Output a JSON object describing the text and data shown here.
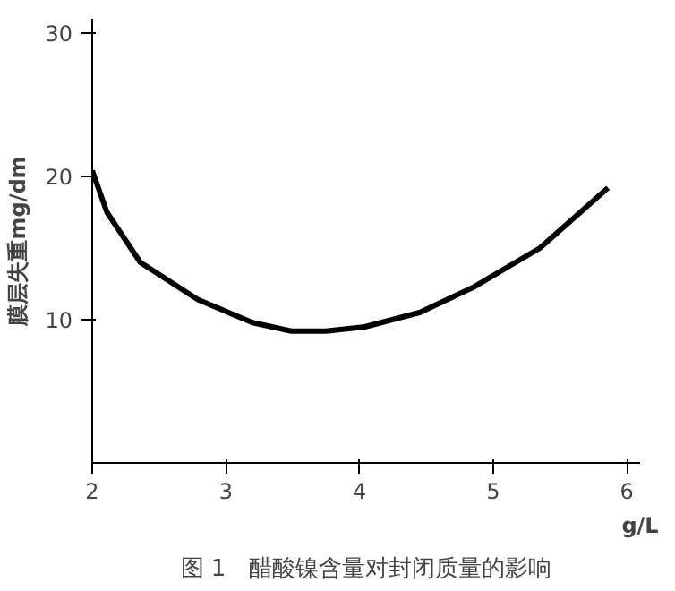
{
  "chart_data": {
    "type": "line",
    "xlabel": "g/L",
    "ylabel": "膜层失重mg/dm",
    "annotations": [
      "图 1　醋酸镍含量对封闭质量的影响"
    ],
    "x": [
      2.0,
      2.11,
      2.36,
      2.79,
      3.2,
      3.49,
      3.75,
      4.04,
      4.45,
      4.86,
      5.35,
      5.86
    ],
    "series": [
      {
        "color": "#000000",
        "values": [
          20.4,
          17.5,
          14.0,
          11.4,
          9.8,
          9.2,
          9.2,
          9.5,
          10.5,
          12.3,
          15.0,
          19.2
        ]
      }
    ],
    "xlim": [
      2,
      6.1
    ],
    "ylim": [
      0,
      31
    ],
    "xticks": [
      2,
      3,
      4,
      5,
      6
    ],
    "yticks": [
      10,
      20,
      30
    ],
    "grid": false,
    "marker": "none",
    "line_style": "solid"
  }
}
